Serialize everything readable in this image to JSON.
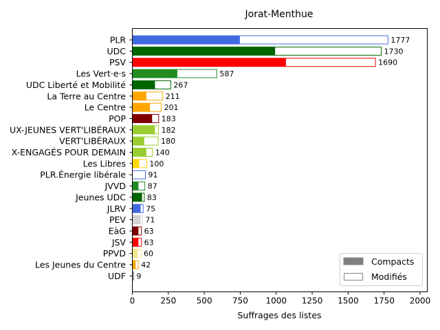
{
  "chart_data": {
    "type": "bar",
    "orientation": "horizontal",
    "stacked": true,
    "title": "Jorat-Menthue",
    "xlabel": "Suffrages des listes",
    "ylabel": "",
    "xlim": [
      0,
      2050
    ],
    "xticks": [
      0,
      250,
      500,
      750,
      1000,
      1250,
      1500,
      1750,
      2000
    ],
    "legend_position": "bottom-right",
    "legend": [
      {
        "label": "Compacts",
        "style": "filled",
        "color": "#808080"
      },
      {
        "label": "Modifiés",
        "style": "outline",
        "color": "#808080"
      }
    ],
    "categories": [
      {
        "name": "PLR",
        "compact": 745,
        "total": 1777,
        "color": "#4169e1"
      },
      {
        "name": "UDC",
        "compact": 990,
        "total": 1730,
        "color": "#006400"
      },
      {
        "name": "PSV",
        "compact": 1065,
        "total": 1690,
        "color": "#ff0000"
      },
      {
        "name": "Les Vert·e·s",
        "compact": 310,
        "total": 587,
        "color": "#228b22"
      },
      {
        "name": "UDC Liberté et Mobilité",
        "compact": 155,
        "total": 267,
        "color": "#006400"
      },
      {
        "name": "La Terre au Centre",
        "compact": 95,
        "total": 211,
        "color": "#ffa500"
      },
      {
        "name": "Le Centre",
        "compact": 120,
        "total": 201,
        "color": "#ffa500"
      },
      {
        "name": "POP",
        "compact": 135,
        "total": 183,
        "color": "#800000"
      },
      {
        "name": "UX-JEUNES VERT'LIBÉRAUX",
        "compact": 155,
        "total": 182,
        "color": "#9acd32"
      },
      {
        "name": "VERT'LIBÉRAUX",
        "compact": 80,
        "total": 180,
        "color": "#9acd32"
      },
      {
        "name": "X-ENGAGÉS POUR DEMAIN",
        "compact": 95,
        "total": 140,
        "color": "#9acd32"
      },
      {
        "name": "Les Libres",
        "compact": 45,
        "total": 100,
        "color": "#ffd700"
      },
      {
        "name": "PLR.Énergie libérale",
        "compact": 0,
        "total": 91,
        "color": "#4169e1"
      },
      {
        "name": "JVVD",
        "compact": 40,
        "total": 87,
        "color": "#228b22"
      },
      {
        "name": "Jeunes UDC",
        "compact": 65,
        "total": 83,
        "color": "#006400"
      },
      {
        "name": "JLRV",
        "compact": 55,
        "total": 75,
        "color": "#4169e1"
      },
      {
        "name": "PEV",
        "compact": 55,
        "total": 71,
        "color": "#d3d3d3"
      },
      {
        "name": "EàG",
        "compact": 40,
        "total": 63,
        "color": "#800000"
      },
      {
        "name": "JSV",
        "compact": 40,
        "total": 63,
        "color": "#ff0000"
      },
      {
        "name": "PPVD",
        "compact": 35,
        "total": 60,
        "color": "#f0e68c"
      },
      {
        "name": "Les Jeunes du Centre",
        "compact": 20,
        "total": 42,
        "color": "#ffa500"
      },
      {
        "name": "UDF",
        "compact": 3,
        "total": 9,
        "color": "#808080"
      }
    ]
  }
}
